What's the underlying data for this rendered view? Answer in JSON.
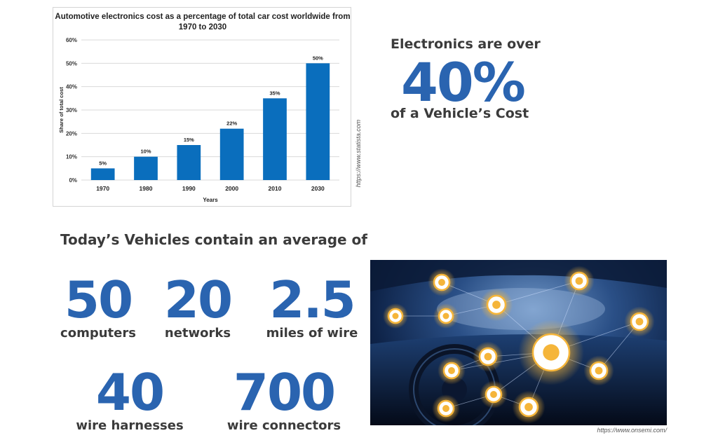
{
  "chart_data": {
    "type": "bar",
    "title": "Automotive electronics cost as a percentage of total car cost worldwide from 1970 to 2030",
    "categories": [
      "1970",
      "1980",
      "1990",
      "2000",
      "2010",
      "2030"
    ],
    "values": [
      5,
      10,
      15,
      22,
      35,
      50
    ],
    "data_labels": [
      "5%",
      "10%",
      "15%",
      "22%",
      "35%",
      "50%"
    ],
    "xlabel": "Years",
    "ylabel": "Share of total cost",
    "ylim": [
      0,
      60
    ],
    "yticks": [
      "0%",
      "10%",
      "20%",
      "30%",
      "40%",
      "50%",
      "60%"
    ],
    "bar_color": "#0a6ebd",
    "grid": true
  },
  "chart_source": "https://www.statista.com",
  "headline": {
    "line1": "Electronics are over",
    "value": "40%",
    "line2": "of a Vehicle’s Cost"
  },
  "stats": {
    "heading": "Today’s Vehicles contain an average of",
    "items": [
      {
        "number": "50",
        "label": "computers"
      },
      {
        "number": "20",
        "label": "networks"
      },
      {
        "number": "2.5",
        "label": "miles of wire"
      },
      {
        "number": "40",
        "label": "wire harnesses"
      },
      {
        "number": "700",
        "label": "wire connectors"
      }
    ]
  },
  "photo": {
    "icons": [
      "cloud-icon",
      "satellite-icon",
      "traffic-light-icon",
      "road-icon",
      "car-icon",
      "location-pin-icon",
      "phone-icon",
      "wifi-icon",
      "heart-icon",
      "chip-icon",
      "battery-icon",
      "seat-icon",
      "music-icon"
    ]
  },
  "photo_source": "https://www.onsemi.com/",
  "colors": {
    "accent": "#2a64b0",
    "text": "#3b3b3b",
    "glow": "#f5b53a"
  }
}
